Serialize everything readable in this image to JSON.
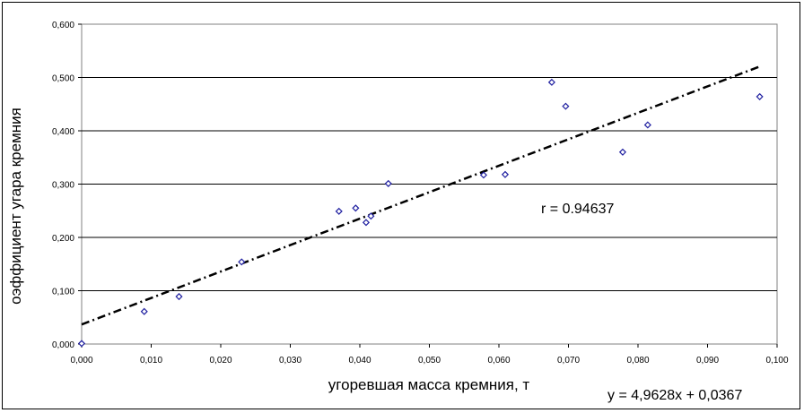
{
  "chart_data": {
    "type": "scatter",
    "xlabel": "угоревшая масса кремния, т",
    "ylabel": "оэффициент угара кремния",
    "xlim": [
      0,
      0.1
    ],
    "ylim": [
      0,
      0.6
    ],
    "x_ticks": [
      "0,000",
      "0,010",
      "0,020",
      "0,030",
      "0,040",
      "0,050",
      "0,060",
      "0,070",
      "0,080",
      "0,090",
      "0,100"
    ],
    "y_ticks": [
      "0,000",
      "0,100",
      "0,200",
      "0,300",
      "0,400",
      "0,500",
      "0,600"
    ],
    "grid": "horizontal",
    "series": [
      {
        "points": [
          [
            0.0,
            0.001
          ],
          [
            0.009,
            0.061
          ],
          [
            0.014,
            0.089
          ],
          [
            0.023,
            0.154
          ],
          [
            0.037,
            0.249
          ],
          [
            0.0394,
            0.255
          ],
          [
            0.0409,
            0.228
          ],
          [
            0.0416,
            0.24
          ],
          [
            0.0441,
            0.301
          ],
          [
            0.0578,
            0.317
          ],
          [
            0.0609,
            0.318
          ],
          [
            0.0676,
            0.491
          ],
          [
            0.0696,
            0.446
          ],
          [
            0.0778,
            0.36
          ],
          [
            0.0814,
            0.411
          ],
          [
            0.0975,
            0.464
          ]
        ],
        "marker": "diamond",
        "color": "#1f1fa0"
      }
    ],
    "trendline": {
      "slope": 4.9628,
      "intercept": 0.0367,
      "x_range": [
        0,
        0.0975
      ],
      "style": "dash-dot",
      "color": "#000000"
    },
    "annotations": {
      "r": "r = 0.94637",
      "equation": "y = 4,9628x + 0,0367"
    }
  }
}
